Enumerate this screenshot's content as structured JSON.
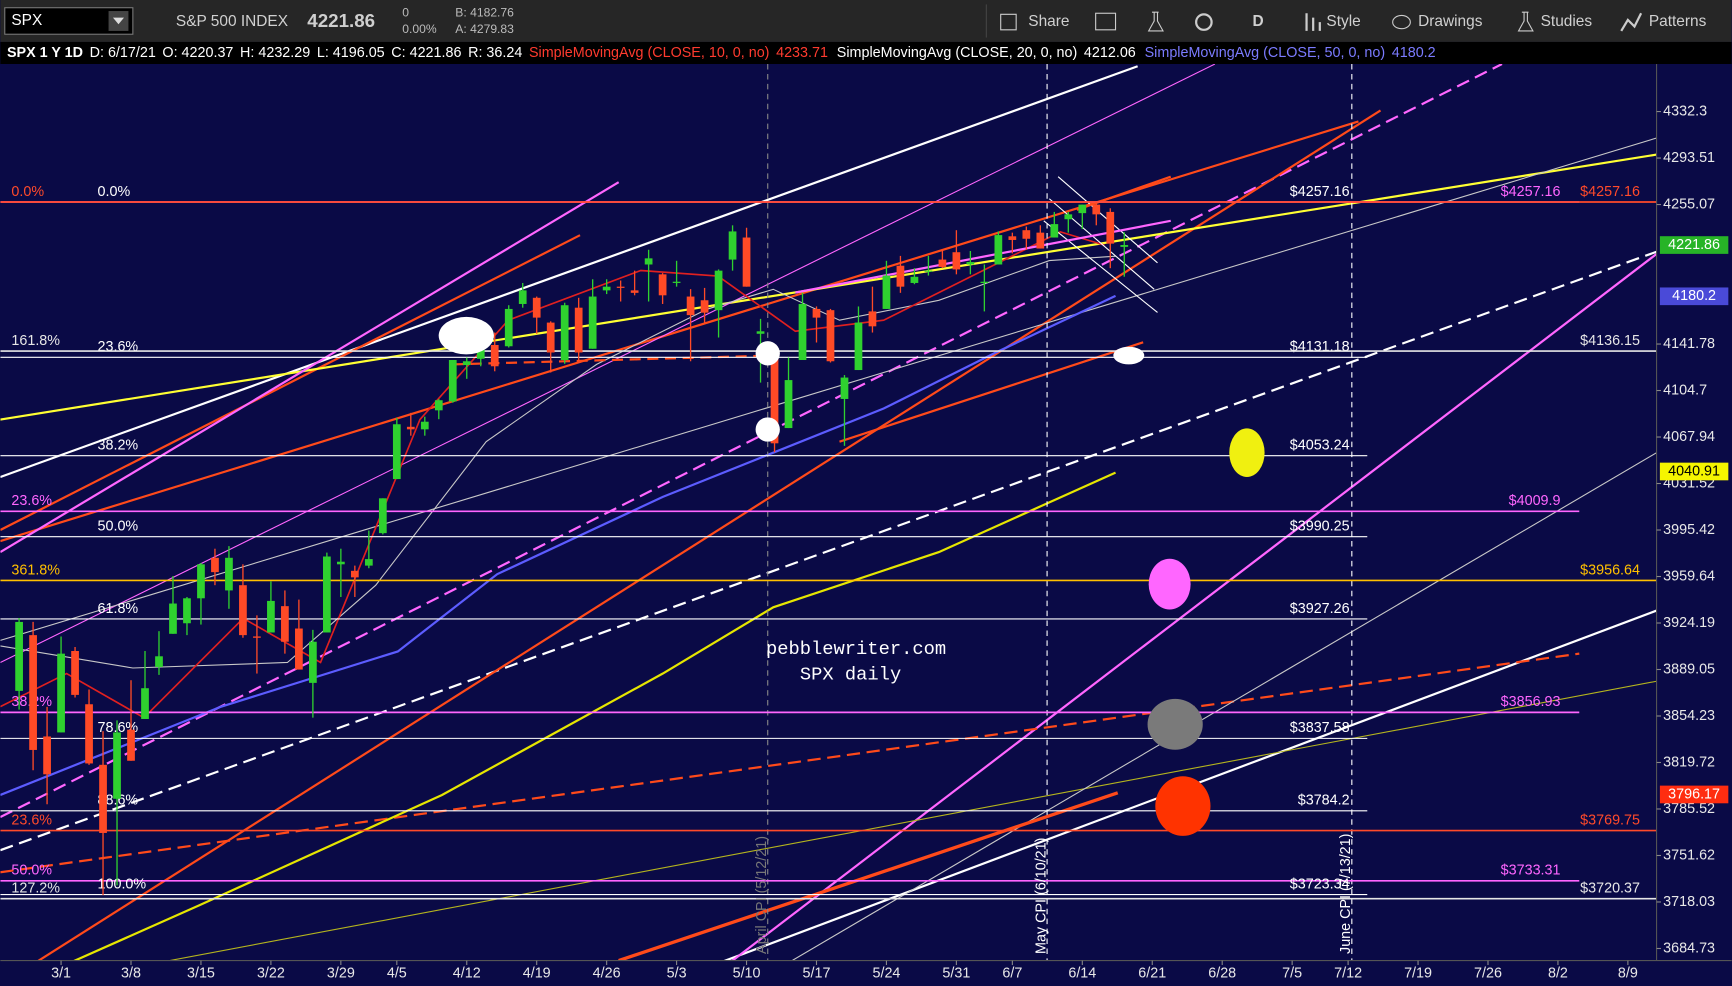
{
  "toolbar": {
    "symbol": "SPX",
    "description": "S&P 500 INDEX",
    "last": "4221.86",
    "change": "0",
    "change_pct": "0.00%",
    "bid": "B: 4182.76",
    "ask": "A: 4279.83",
    "buttons": [
      "Share",
      "D",
      "Style",
      "Drawings",
      "Studies",
      "Patterns"
    ]
  },
  "info_bar": {
    "title": "SPX 1 Y 1D",
    "items": [
      "D: 6/17/21",
      "O: 4220.37",
      "H: 4232.29",
      "L: 4196.05",
      "C: 4221.86",
      "R: 36.24"
    ],
    "studies": [
      {
        "name": "SimpleMovingAvg (CLOSE, 10, 0, no)",
        "value": "4233.71",
        "color": "#ff3b2f"
      },
      {
        "name": "SimpleMovingAvg (CLOSE, 20, 0, no)",
        "value": "4212.06",
        "color": "#ffffff"
      },
      {
        "name": "SimpleMovingAvg (CLOSE, 50, 0, no)",
        "value": "4180.2",
        "color": "#7b7bff"
      }
    ]
  },
  "chart_data": {
    "type": "candlestick",
    "up_color": "#2fd12f",
    "down_color": "#ff4a26",
    "log_scale": true,
    "x": [
      -3,
      -2,
      -1,
      0,
      1,
      2,
      3,
      4,
      5,
      6,
      7,
      8,
      9,
      10,
      11,
      12,
      13,
      14,
      15,
      16,
      17,
      18,
      19,
      20,
      21,
      22,
      23,
      24,
      25,
      26,
      27,
      28,
      29,
      30,
      31,
      32,
      33,
      34,
      35,
      36,
      37,
      38,
      39,
      40,
      41,
      42,
      43,
      44,
      45,
      46,
      47,
      48,
      49,
      50,
      51,
      52,
      53,
      54,
      55,
      56,
      57,
      58,
      59,
      60,
      61,
      62,
      63,
      64,
      65,
      66,
      67,
      68,
      69,
      70,
      71,
      72,
      73,
      74,
      75,
      76
    ],
    "open": [
      3873,
      3915,
      3839,
      3842,
      3903,
      3863,
      3818,
      3793,
      3844,
      3852,
      3891,
      3916,
      3924,
      3943,
      3974,
      3949,
      3953,
      3914,
      3917,
      3937,
      3920,
      3879,
      3917,
      3969,
      3964,
      3968,
      3993,
      4035,
      4076,
      4074,
      4089,
      4096,
      4125,
      4130,
      4141,
      4140,
      4174,
      4179,
      4159,
      4129,
      4171,
      4138,
      4185,
      4188,
      4185,
      4206,
      4198,
      4191,
      4180,
      4177,
      4169,
      4210,
      4228,
      4150,
      4130,
      4075,
      4129,
      4170,
      4169,
      4098,
      4121,
      4168,
      4170,
      4205,
      4191,
      4201,
      4210,
      4216,
      4206,
      4191,
      4206,
      4229,
      4234,
      4232,
      4228,
      4243,
      4248,
      4255,
      4249,
      4220.37
    ],
    "high": [
      3928,
      3925,
      3861,
      3914,
      3906,
      3874,
      3843,
      3851,
      3881,
      3903,
      3918,
      3960,
      3944,
      3970,
      3981,
      3983,
      3969,
      3930,
      3956,
      3949,
      3942,
      3919,
      3978,
      3981,
      3968,
      3995,
      4020,
      4083,
      4087,
      4084,
      4098,
      4129,
      4131,
      4148,
      4151,
      4173,
      4191,
      4180,
      4160,
      4175,
      4179,
      4194,
      4194,
      4193,
      4201,
      4218,
      4199,
      4209,
      4186,
      4187,
      4202,
      4238,
      4236,
      4162,
      4134,
      4131,
      4183,
      4172,
      4170,
      4117,
      4172,
      4188,
      4209,
      4213,
      4203,
      4213,
      4218,
      4234,
      4217,
      4206,
      4233,
      4232,
      4237,
      4238,
      4249,
      4249,
      4255,
      4257,
      4252,
      4232.29
    ],
    "low": [
      3859,
      3814,
      3789,
      3842,
      3868,
      3818,
      3723,
      3730,
      3821,
      3852,
      3885,
      3916,
      3915,
      3923,
      3953,
      3935,
      3913,
      3886,
      3917,
      3901,
      3889,
      3853,
      3917,
      3944,
      3944,
      3966,
      3992,
      4035,
      4069,
      4069,
      4082,
      4095,
      4114,
      4124,
      4120,
      4139,
      4171,
      4150,
      4119,
      4126,
      4127,
      4138,
      4182,
      4176,
      4181,
      4176,
      4174,
      4188,
      4128,
      4159,
      4147,
      4201,
      4188,
      4111,
      4056,
      4075,
      4129,
      4143,
      4127,
      4061,
      4121,
      4151,
      4170,
      4183,
      4190,
      4197,
      4203,
      4198,
      4198,
      4168,
      4206,
      4215,
      4218,
      4219,
      4228,
      4232,
      4235,
      4238,
      4203,
      4196.05
    ],
    "close": [
      3925,
      3829,
      3811,
      3901,
      3870,
      3819,
      3768,
      3842,
      3821,
      3875,
      3899,
      3939,
      3943,
      3969,
      3963,
      3974,
      3915,
      3913,
      3941,
      3910,
      3889,
      3910,
      3975,
      3971,
      3959,
      3973,
      4020,
      4078,
      4074,
      4080,
      4097,
      4129,
      4128,
      4142,
      4124,
      4170,
      4185,
      4163,
      4135,
      4173,
      4135,
      4180,
      4188,
      4187,
      4183,
      4211,
      4181,
      4192,
      4165,
      4167,
      4201,
      4233,
      4188,
      4152,
      4063,
      4113,
      4174,
      4163,
      4128,
      4115,
      4159,
      4156,
      4197,
      4188,
      4196,
      4201,
      4204,
      4202,
      4208,
      4192,
      4230,
      4226,
      4227,
      4219,
      4239,
      4247,
      4255,
      4247,
      4223,
      4221.86
    ],
    "xlim": [
      -4.34,
      114.05
    ],
    "xticks": [
      {
        "value": 0,
        "label": "3/1"
      },
      {
        "value": 5,
        "label": "3/8"
      },
      {
        "value": 10,
        "label": "3/15"
      },
      {
        "value": 15,
        "label": "3/22"
      },
      {
        "value": 20,
        "label": "3/29"
      },
      {
        "value": 24,
        "label": "4/5"
      },
      {
        "value": 29,
        "label": "4/12"
      },
      {
        "value": 34,
        "label": "4/19"
      },
      {
        "value": 39,
        "label": "4/26"
      },
      {
        "value": 44,
        "label": "5/3"
      },
      {
        "value": 49,
        "label": "5/10"
      },
      {
        "value": 54,
        "label": "5/17"
      },
      {
        "value": 59,
        "label": "5/24"
      },
      {
        "value": 64,
        "label": "5/31"
      },
      {
        "value": 68,
        "label": "6/7"
      },
      {
        "value": 73,
        "label": "6/14"
      },
      {
        "value": 78,
        "label": "6/21"
      },
      {
        "value": 83,
        "label": "6/28"
      },
      {
        "value": 88,
        "label": "7/5"
      },
      {
        "value": 92,
        "label": "7/12"
      },
      {
        "value": 97,
        "label": "7/19"
      },
      {
        "value": 102,
        "label": "7/26"
      },
      {
        "value": 107,
        "label": "8/2"
      },
      {
        "value": 112,
        "label": "8/9"
      }
    ],
    "ylim": [
      3676.1,
      4372.3
    ],
    "yticks": [
      4332.3,
      4293.51,
      4255.07,
      4141.78,
      4104.7,
      4067.94,
      4031.52,
      3995.42,
      3959.64,
      3924.19,
      3889.05,
      3854.23,
      3819.72,
      3785.52,
      3751.62,
      3718.03,
      3684.73
    ],
    "price_labels": [
      {
        "value": 4221.86,
        "color": "#27b427"
      },
      {
        "value": 4180.2,
        "color": "#4a4ad8"
      },
      {
        "value": 4040.91,
        "color": "#f5f500"
      },
      {
        "value": 3796.17,
        "color": "#ff2d10"
      }
    ],
    "levels": [
      {
        "pct": "0.0%",
        "value": 4257.16,
        "label": "$4257.16",
        "color": "#ffffff"
      },
      {
        "value": 4257.16,
        "label": "$4257.16",
        "color": "#ff66ff"
      },
      {
        "pct": "0.0%",
        "value": 4257.16,
        "label": "$4257.16",
        "color": "#ff4a2a"
      },
      {
        "pct": "23.6%",
        "value": 4131.18,
        "label": "$4131.18",
        "color": "#ffffff"
      },
      {
        "pct": "161.8%",
        "value": 4136.15,
        "label": "$4136.15",
        "color": "#e6e6e6"
      },
      {
        "pct": "38.2%",
        "value": 4053.24,
        "label": "$4053.24",
        "color": "#ffffff"
      },
      {
        "pct": "23.6%",
        "value": 4009.9,
        "label": "$4009.9",
        "color": "#ff66ff"
      },
      {
        "pct": "50.0%",
        "value": 3990.25,
        "label": "$3990.25",
        "color": "#ffffff"
      },
      {
        "pct": "361.8%",
        "value": 3956.64,
        "label": "$3956.64",
        "color": "#ffc000"
      },
      {
        "pct": "61.8%",
        "value": 3927.26,
        "label": "$3927.26",
        "color": "#ffffff"
      },
      {
        "pct": "38.2%",
        "value": 3856.93,
        "label": "$3856.93",
        "color": "#ff66ff"
      },
      {
        "pct": "78.6%",
        "value": 3837.58,
        "label": "$3837.58",
        "color": "#ffffff"
      },
      {
        "pct": "88.6%",
        "value": 3784.2,
        "label": "$3784.2",
        "color": "#ffffff"
      },
      {
        "pct": "23.6%",
        "value": 3769.75,
        "label": "$3769.75",
        "color": "#ff4a2a"
      },
      {
        "pct": "50.0%",
        "value": 3733.31,
        "label": "$3733.31",
        "color": "#ff66ff"
      },
      {
        "pct": "100.0%",
        "value": 3723.34,
        "label": "$3723.34",
        "color": "#ffffff"
      },
      {
        "pct": "127.2%",
        "value": 3720.37,
        "label": "$3720.37",
        "color": "#e6e6e6"
      }
    ],
    "events": [
      "April CPI (5/12/21)",
      "May CPI (6/10/21)",
      "June CPI (7/13/21)"
    ],
    "watermark": [
      "pebblewriter.com",
      "SPX daily"
    ]
  }
}
